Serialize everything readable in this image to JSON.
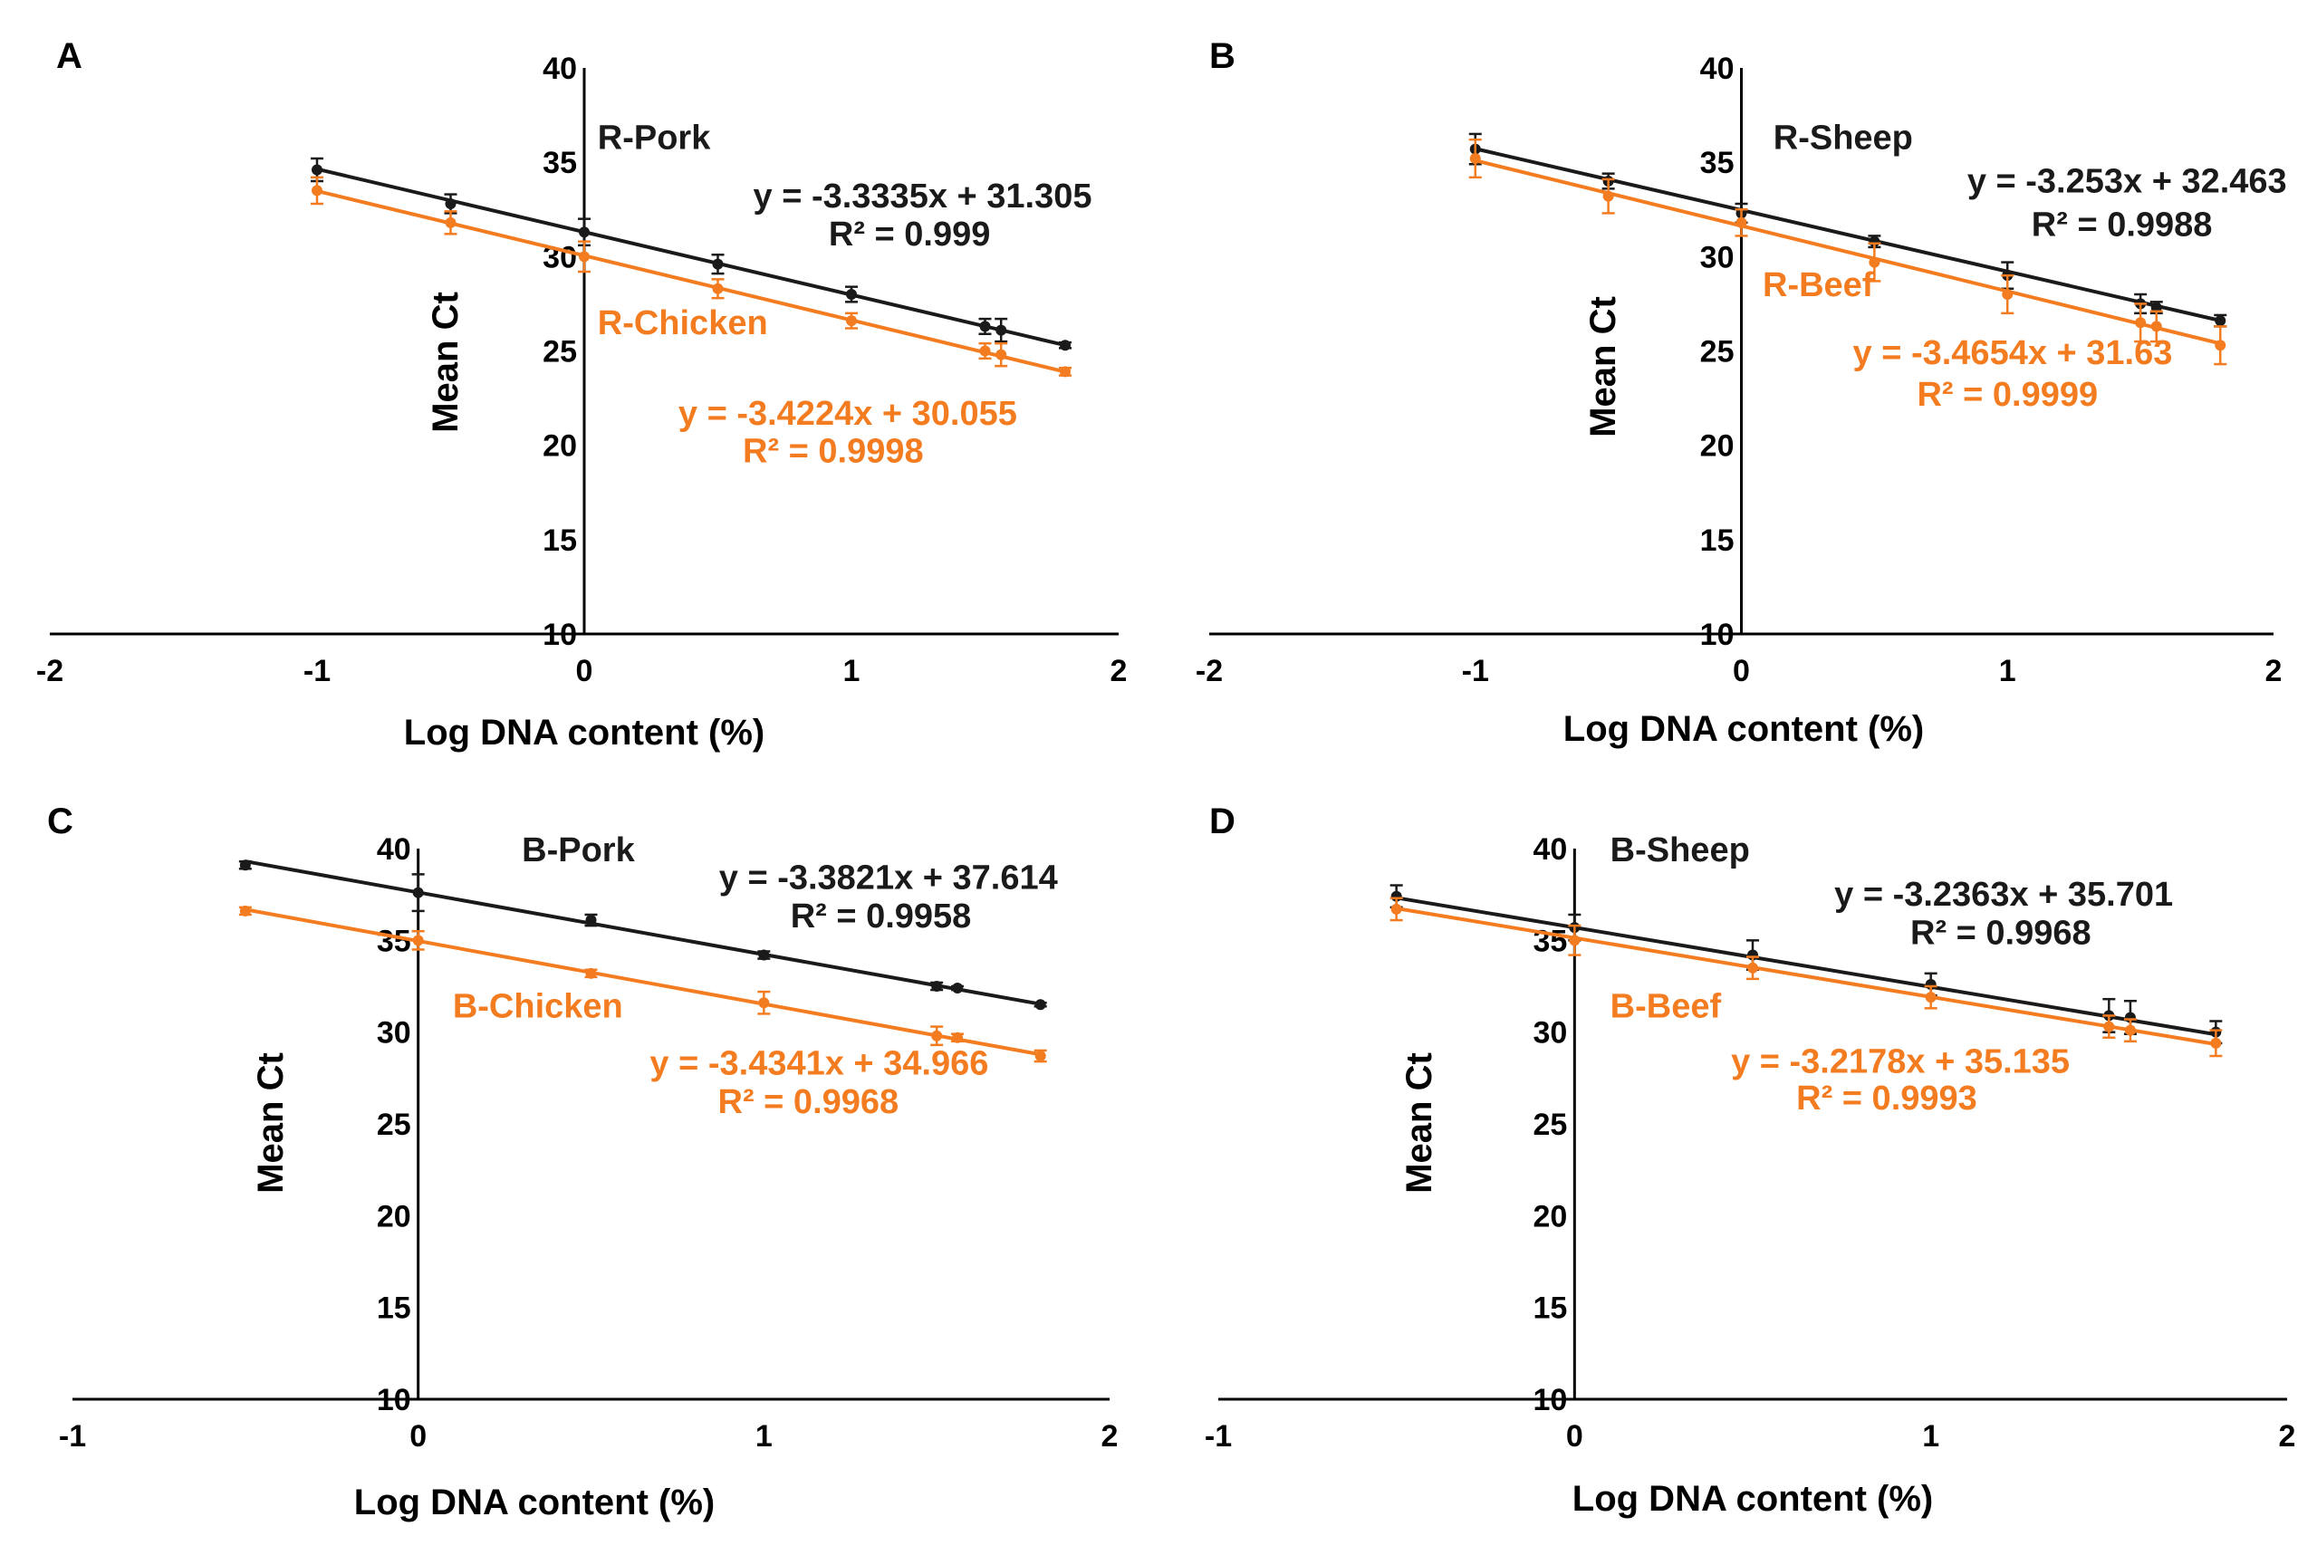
{
  "figure": {
    "background": "#ffffff",
    "axis_color": "#000000"
  },
  "series_colors": {
    "black": "#1a1a1a",
    "orange": "#f47c20"
  },
  "chart_data": [
    {
      "panel": "A",
      "type": "scatter",
      "xlabel": "Log DNA content (%)",
      "ylabel": "Mean Ct",
      "xlim": [
        -2,
        2
      ],
      "ylim": [
        10,
        40
      ],
      "xticks": [
        -2,
        -1,
        0,
        1,
        2
      ],
      "yticks": [
        10,
        15,
        20,
        25,
        30,
        35,
        40
      ],
      "series": [
        {
          "name": "R-Pork",
          "color": "#1a1a1a",
          "label_pos": [
            0.05,
            35.7
          ],
          "equation": "y = -3.3335x + 31.305",
          "r2": "R² = 0.999",
          "eq_anchor": "end",
          "eq_pos": [
            1.9,
            32.6
          ],
          "r2_pos": [
            1.52,
            30.6
          ],
          "slope": -3.3335,
          "intercept": 31.305,
          "fit_x": [
            -1,
            1.8
          ],
          "points": [
            {
              "x": -1,
              "y": 34.6,
              "err": 0.6
            },
            {
              "x": -0.5,
              "y": 32.8,
              "err": 0.5
            },
            {
              "x": 0,
              "y": 31.3,
              "err": 0.7
            },
            {
              "x": 0.5,
              "y": 29.6,
              "err": 0.5
            },
            {
              "x": 1,
              "y": 28.0,
              "err": 0.4
            },
            {
              "x": 1.5,
              "y": 26.3,
              "err": 0.4
            },
            {
              "x": 1.56,
              "y": 26.1,
              "err": 0.6
            },
            {
              "x": 1.8,
              "y": 25.3,
              "err": 0.15
            }
          ]
        },
        {
          "name": "R-Chicken",
          "color": "#f47c20",
          "label_pos": [
            0.05,
            25.9
          ],
          "equation": "y = -3.4224x + 30.055",
          "r2": "R² = 0.9998",
          "eq_anchor": "end",
          "eq_pos": [
            1.62,
            21.1
          ],
          "r2_pos": [
            1.27,
            19.1
          ],
          "slope": -3.4224,
          "intercept": 30.055,
          "fit_x": [
            -1,
            1.8
          ],
          "points": [
            {
              "x": -1,
              "y": 33.5,
              "err": 0.7
            },
            {
              "x": -0.5,
              "y": 31.8,
              "err": 0.6
            },
            {
              "x": 0,
              "y": 30.0,
              "err": 0.8
            },
            {
              "x": 0.5,
              "y": 28.3,
              "err": 0.5
            },
            {
              "x": 1,
              "y": 26.6,
              "err": 0.4
            },
            {
              "x": 1.5,
              "y": 25.0,
              "err": 0.4
            },
            {
              "x": 1.56,
              "y": 24.8,
              "err": 0.6
            },
            {
              "x": 1.8,
              "y": 23.9,
              "err": 0.2
            }
          ]
        }
      ]
    },
    {
      "panel": "B",
      "type": "scatter",
      "xlabel": "Log DNA content (%)",
      "ylabel": "Mean Ct",
      "xlim": [
        -2,
        2
      ],
      "ylim": [
        10,
        40
      ],
      "xticks": [
        -2,
        -1,
        0,
        1,
        2
      ],
      "yticks": [
        10,
        15,
        20,
        25,
        30,
        35,
        40
      ],
      "series": [
        {
          "name": "R-Sheep",
          "color": "#1a1a1a",
          "label_pos": [
            0.12,
            35.7
          ],
          "equation": "y = -3.253x + 32.463",
          "r2": "R² = 0.9988",
          "eq_anchor": "end",
          "eq_pos": [
            2.05,
            33.4
          ],
          "r2_pos": [
            1.77,
            31.1
          ],
          "slope": -3.253,
          "intercept": 32.463,
          "fit_x": [
            -1,
            1.8
          ],
          "points": [
            {
              "x": -1,
              "y": 35.7,
              "err": 0.8
            },
            {
              "x": -0.5,
              "y": 34.0,
              "err": 0.4
            },
            {
              "x": 0,
              "y": 32.3,
              "err": 0.5
            },
            {
              "x": 0.5,
              "y": 30.8,
              "err": 0.3
            },
            {
              "x": 1,
              "y": 29.0,
              "err": 0.7
            },
            {
              "x": 1.5,
              "y": 27.5,
              "err": 0.5
            },
            {
              "x": 1.56,
              "y": 27.3,
              "err": 0.3
            },
            {
              "x": 1.8,
              "y": 26.6,
              "err": 0.3
            }
          ]
        },
        {
          "name": "R-Beef",
          "color": "#f47c20",
          "label_pos": [
            0.08,
            27.9
          ],
          "equation": "y = -3.4654x + 31.63",
          "r2": "R² = 0.9999",
          "eq_anchor": "end",
          "eq_pos": [
            1.62,
            24.3
          ],
          "r2_pos": [
            1.34,
            22.1
          ],
          "slope": -3.4654,
          "intercept": 31.63,
          "fit_x": [
            -1,
            1.8
          ],
          "points": [
            {
              "x": -1,
              "y": 35.2,
              "err": 1.0
            },
            {
              "x": -0.5,
              "y": 33.2,
              "err": 0.9
            },
            {
              "x": 0,
              "y": 31.8,
              "err": 0.7
            },
            {
              "x": 0.5,
              "y": 29.7,
              "err": 1.0
            },
            {
              "x": 1,
              "y": 28.0,
              "err": 1.0
            },
            {
              "x": 1.5,
              "y": 26.5,
              "err": 1.0
            },
            {
              "x": 1.56,
              "y": 26.3,
              "err": 0.8
            },
            {
              "x": 1.8,
              "y": 25.3,
              "err": 1.0
            }
          ]
        }
      ]
    },
    {
      "panel": "C",
      "type": "scatter",
      "xlabel": "Log DNA content (%)",
      "ylabel": "Mean Ct",
      "xlim": [
        -1,
        2
      ],
      "ylim": [
        10,
        40
      ],
      "xticks": [
        -1,
        0,
        1,
        2
      ],
      "yticks": [
        10,
        15,
        20,
        25,
        30,
        35,
        40
      ],
      "series": [
        {
          "name": "B-Pork",
          "color": "#1a1a1a",
          "label_pos": [
            0.3,
            39.3
          ],
          "equation": "y = -3.3821x + 37.614",
          "r2": "R² = 0.9958",
          "eq_anchor": "end",
          "eq_pos": [
            1.85,
            37.8
          ],
          "r2_pos": [
            1.6,
            35.7
          ],
          "slope": -3.3821,
          "intercept": 37.614,
          "fit_x": [
            -0.5,
            1.8
          ],
          "points": [
            {
              "x": -0.5,
              "y": 39.1,
              "err": 0.2
            },
            {
              "x": 0,
              "y": 37.6,
              "err": 1.0
            },
            {
              "x": 0.5,
              "y": 36.1,
              "err": 0.3
            },
            {
              "x": 1,
              "y": 34.2,
              "err": 0.2
            },
            {
              "x": 1.5,
              "y": 32.5,
              "err": 0.2
            },
            {
              "x": 1.56,
              "y": 32.4,
              "err": 0.1
            },
            {
              "x": 1.8,
              "y": 31.5,
              "err": 0.1
            }
          ]
        },
        {
          "name": "B-Chicken",
          "color": "#f47c20",
          "label_pos": [
            0.1,
            30.8
          ],
          "equation": "y = -3.4341x + 34.966",
          "r2": "R² = 0.9968",
          "eq_anchor": "end",
          "eq_pos": [
            1.65,
            27.7
          ],
          "r2_pos": [
            1.39,
            25.6
          ],
          "slope": -3.4341,
          "intercept": 34.966,
          "fit_x": [
            -0.5,
            1.8
          ],
          "points": [
            {
              "x": -0.5,
              "y": 36.6,
              "err": 0.2
            },
            {
              "x": 0,
              "y": 35.0,
              "err": 0.5
            },
            {
              "x": 0.5,
              "y": 33.2,
              "err": 0.2
            },
            {
              "x": 1,
              "y": 31.6,
              "err": 0.6
            },
            {
              "x": 1.5,
              "y": 29.8,
              "err": 0.5
            },
            {
              "x": 1.56,
              "y": 29.7,
              "err": 0.2
            },
            {
              "x": 1.8,
              "y": 28.7,
              "err": 0.3
            }
          ]
        }
      ]
    },
    {
      "panel": "D",
      "type": "scatter",
      "xlabel": "Log DNA content (%)",
      "ylabel": "Mean Ct",
      "xlim": [
        -1,
        2
      ],
      "ylim": [
        10,
        40
      ],
      "xticks": [
        -1,
        0,
        1,
        2
      ],
      "yticks": [
        10,
        15,
        20,
        25,
        30,
        35,
        40
      ],
      "series": [
        {
          "name": "B-Sheep",
          "color": "#1a1a1a",
          "label_pos": [
            0.1,
            39.3
          ],
          "equation": "y = -3.2363x + 35.701",
          "r2": "R² = 0.9968",
          "eq_anchor": "end",
          "eq_pos": [
            1.68,
            36.9
          ],
          "r2_pos": [
            1.45,
            34.8
          ],
          "slope": -3.2363,
          "intercept": 35.701,
          "fit_x": [
            -0.5,
            1.8
          ],
          "points": [
            {
              "x": -0.5,
              "y": 37.4,
              "err": 0.6
            },
            {
              "x": 0,
              "y": 35.7,
              "err": 0.7
            },
            {
              "x": 0.5,
              "y": 34.2,
              "err": 0.8
            },
            {
              "x": 1,
              "y": 32.6,
              "err": 0.6
            },
            {
              "x": 1.5,
              "y": 30.9,
              "err": 0.9
            },
            {
              "x": 1.56,
              "y": 30.8,
              "err": 0.9
            },
            {
              "x": 1.8,
              "y": 30.0,
              "err": 0.6
            }
          ]
        },
        {
          "name": "B-Beef",
          "color": "#f47c20",
          "label_pos": [
            0.1,
            30.8
          ],
          "equation": "y = -3.2178x + 35.135",
          "r2": "R² = 0.9993",
          "eq_anchor": "end",
          "eq_pos": [
            1.39,
            27.8
          ],
          "r2_pos": [
            1.13,
            25.8
          ],
          "slope": -3.2178,
          "intercept": 35.135,
          "fit_x": [
            -0.5,
            1.8
          ],
          "points": [
            {
              "x": -0.5,
              "y": 36.7,
              "err": 0.6
            },
            {
              "x": 0,
              "y": 35.0,
              "err": 0.8
            },
            {
              "x": 0.5,
              "y": 33.5,
              "err": 0.6
            },
            {
              "x": 1,
              "y": 31.9,
              "err": 0.6
            },
            {
              "x": 1.5,
              "y": 30.3,
              "err": 0.6
            },
            {
              "x": 1.56,
              "y": 30.1,
              "err": 0.6
            },
            {
              "x": 1.8,
              "y": 29.4,
              "err": 0.7
            }
          ]
        }
      ]
    }
  ]
}
